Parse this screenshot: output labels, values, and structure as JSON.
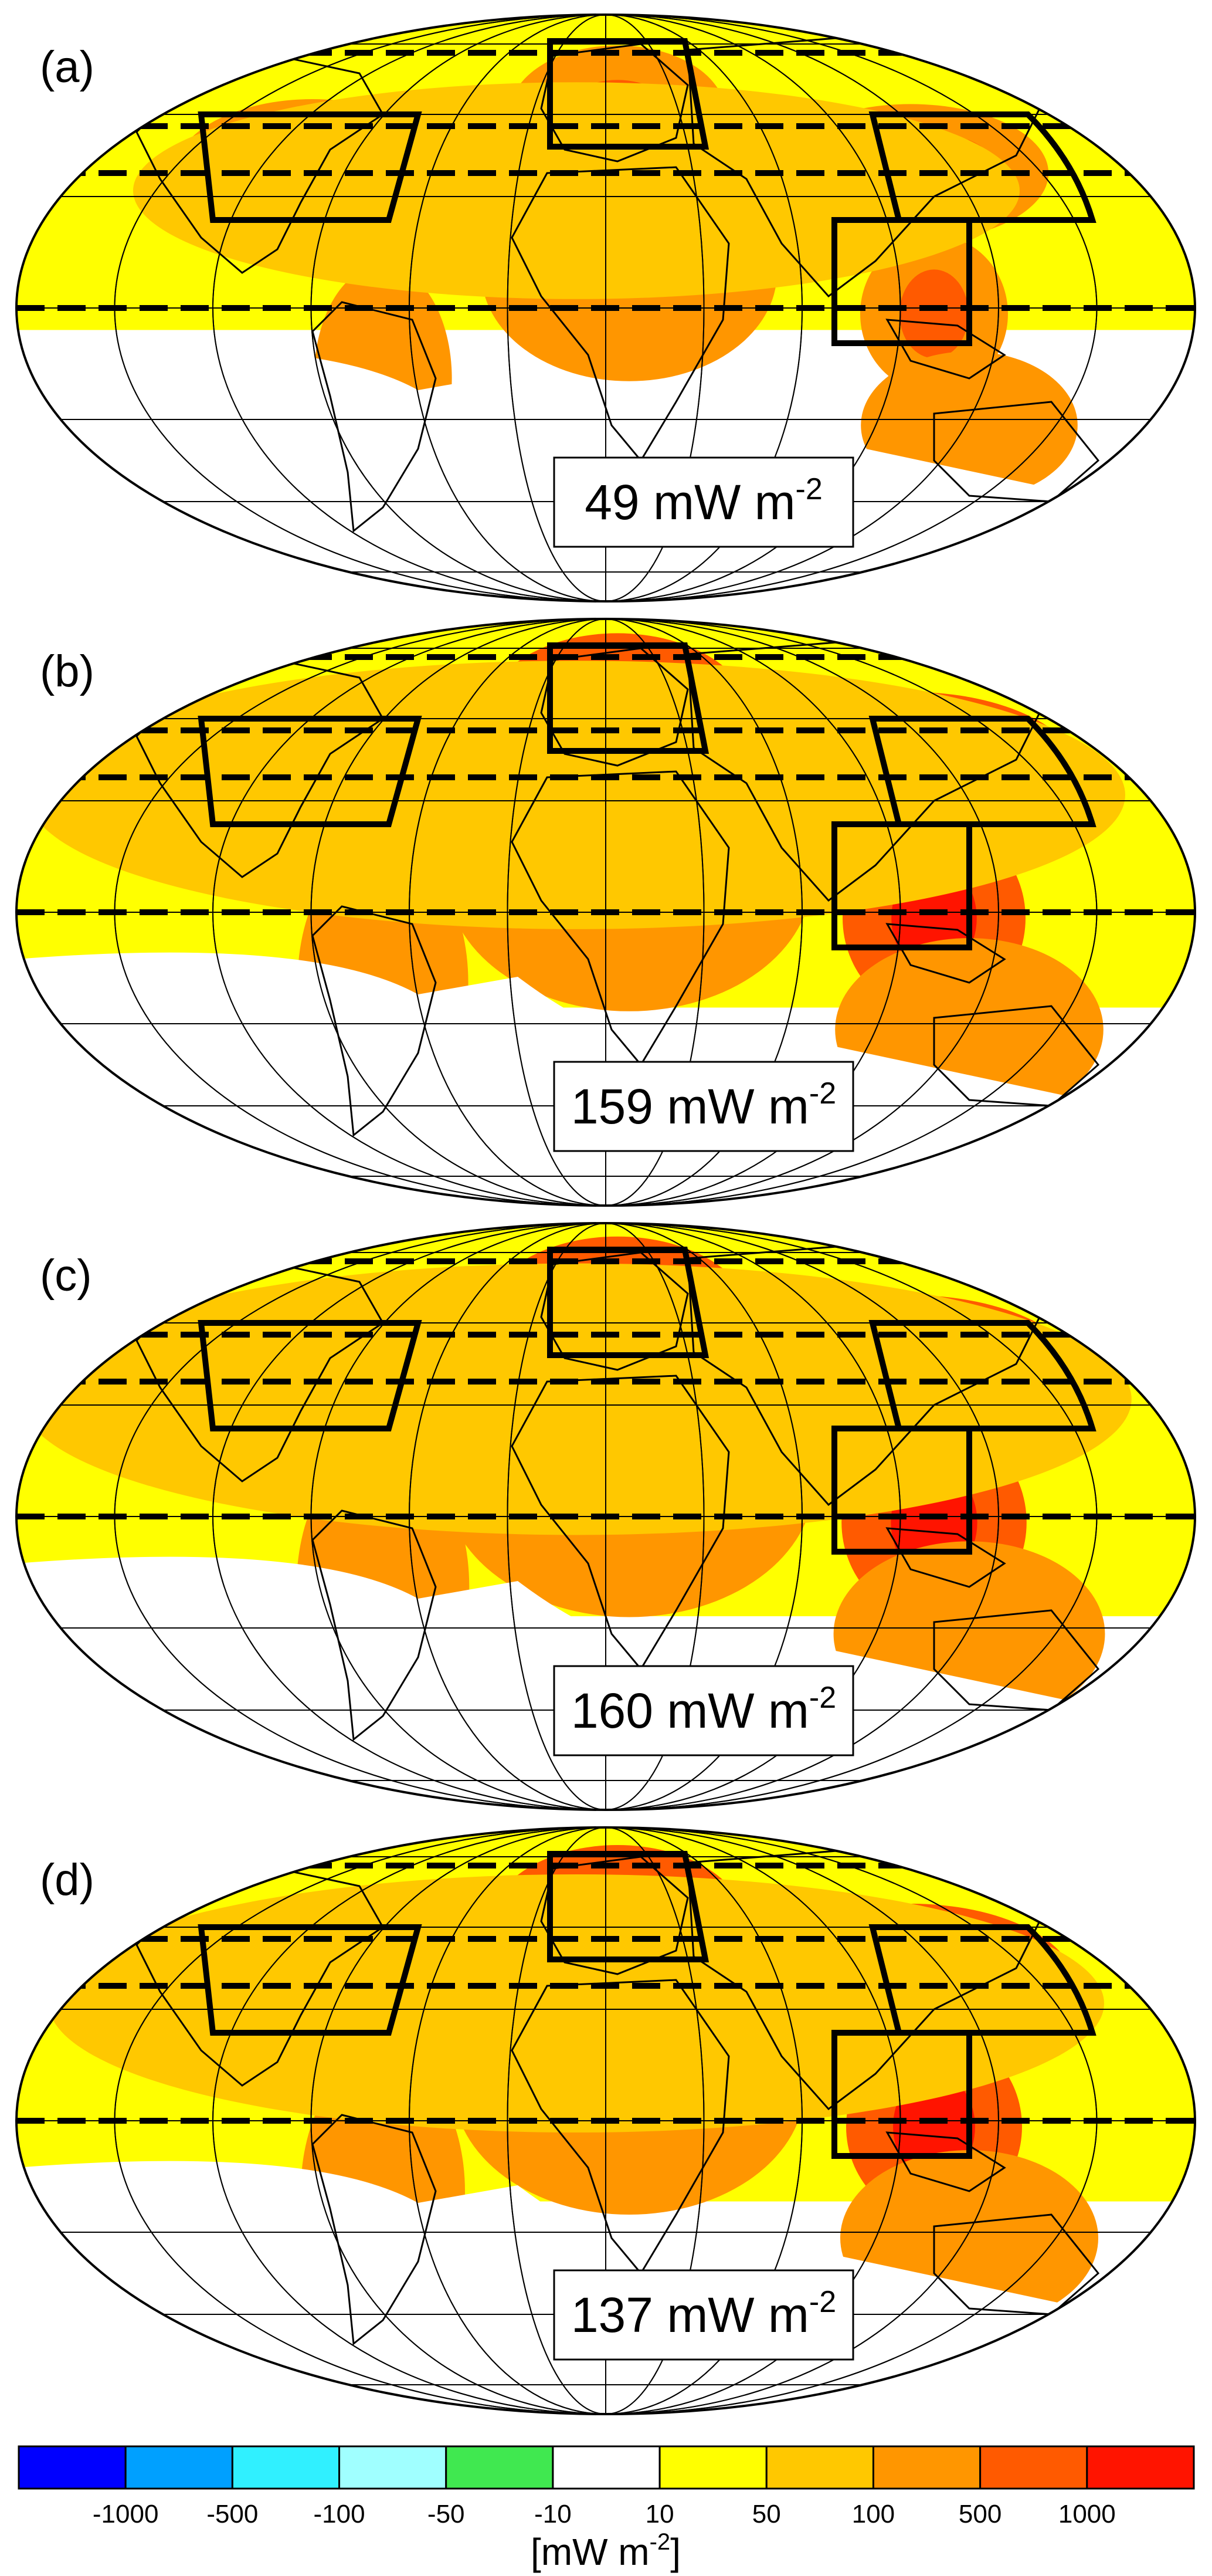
{
  "panels": [
    {
      "letter": "(a)",
      "value_number": "49",
      "value_unit": "mW m",
      "value_exponent": "-2",
      "intensity": 0.35
    },
    {
      "letter": "(b)",
      "value_number": "159",
      "value_unit": "mW m",
      "value_exponent": "-2",
      "intensity": 0.85
    },
    {
      "letter": "(c)",
      "value_number": "160",
      "value_unit": "mW m",
      "value_exponent": "-2",
      "intensity": 0.88
    },
    {
      "letter": "(d)",
      "value_number": "137",
      "value_unit": "mW m",
      "value_exponent": "-2",
      "intensity": 0.75
    }
  ],
  "colorbar": {
    "colors": [
      "#0000ff",
      "#00a0ff",
      "#30f0ff",
      "#a0ffff",
      "#40e850",
      "#ffffff",
      "#ffff00",
      "#ffc800",
      "#ff9600",
      "#ff5a00",
      "#ff1400"
    ],
    "tick_labels": [
      "-1000",
      "-500",
      "-100",
      "-50",
      "-10",
      "10",
      "50",
      "100",
      "500",
      "1000"
    ],
    "unit_text": "[mW m",
    "unit_exponent": "-2",
    "unit_close": "]"
  }
}
